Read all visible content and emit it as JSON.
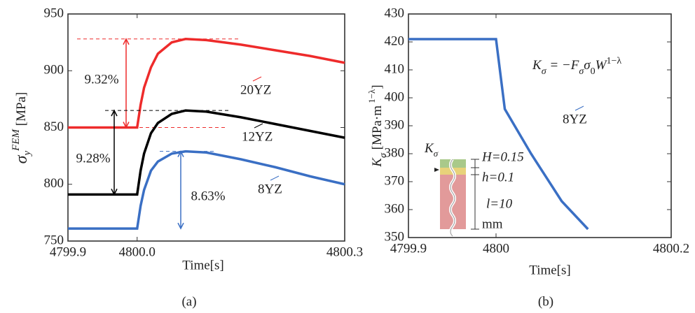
{
  "chart_data": [
    {
      "type": "line",
      "caption": "(a)",
      "xlabel": "Time[s]",
      "ylabel": [
        "σ",
        "y",
        "FEM",
        " [MPa]"
      ],
      "x": [
        4799.9,
        4800.0,
        4800.005,
        4800.01,
        4800.02,
        4800.03,
        4800.05,
        4800.07,
        4800.1,
        4800.15,
        4800.2,
        4800.25,
        4800.3
      ],
      "xlim": [
        4799.9,
        4800.3
      ],
      "xticks": [
        4799.9,
        {
          "value": 4800,
          "label": "4800.0"
        },
        4800.3
      ],
      "ylim": [
        750,
        950
      ],
      "yticks": [
        750,
        800,
        850,
        900,
        950
      ],
      "series": [
        {
          "name": "20YZ",
          "color": "#ee2b2b",
          "values": [
            850,
            850,
            870,
            885,
            903,
            915,
            925,
            928,
            927,
            923,
            918,
            913,
            907
          ]
        },
        {
          "name": "12YZ",
          "color": "#000000",
          "values": [
            791,
            791,
            812,
            827,
            845,
            854,
            862,
            865,
            864,
            859,
            853,
            847,
            841
          ]
        },
        {
          "name": "8YZ",
          "color": "#3a6fc4",
          "values": [
            761,
            761,
            781,
            795,
            812,
            820,
            827,
            829,
            828,
            822,
            815,
            807,
            800
          ]
        }
      ],
      "annotations": [
        "9.32%",
        "9.28%",
        "8.63%"
      ]
    },
    {
      "type": "line",
      "caption": "(b)",
      "xlabel": "Time[s]",
      "ylabel": [
        "K",
        "σ",
        " [MPa·m",
        " 1−λ",
        "]"
      ],
      "x": [
        4799.9,
        4800,
        4800.01,
        4800.04,
        4800.075,
        4800.105
      ],
      "xlim": [
        4799.9,
        4800.2
      ],
      "xticks": [
        4799.9,
        4800,
        4800.2
      ],
      "ylim": [
        350,
        430
      ],
      "yticks": [
        350,
        360,
        370,
        380,
        390,
        400,
        410,
        420,
        430
      ],
      "series": [
        {
          "name": "8YZ",
          "color": "#3a6fc4",
          "values": [
            421,
            421,
            396,
            380,
            363,
            353
          ]
        }
      ],
      "formula": [
        "K",
        "σ",
        " = −F",
        "σ",
        "σ",
        "0",
        "W",
        "1−λ"
      ],
      "inset": [
        "K",
        "σ",
        "H=0.15",
        "h=0.1",
        "l=10",
        "mm"
      ]
    }
  ]
}
